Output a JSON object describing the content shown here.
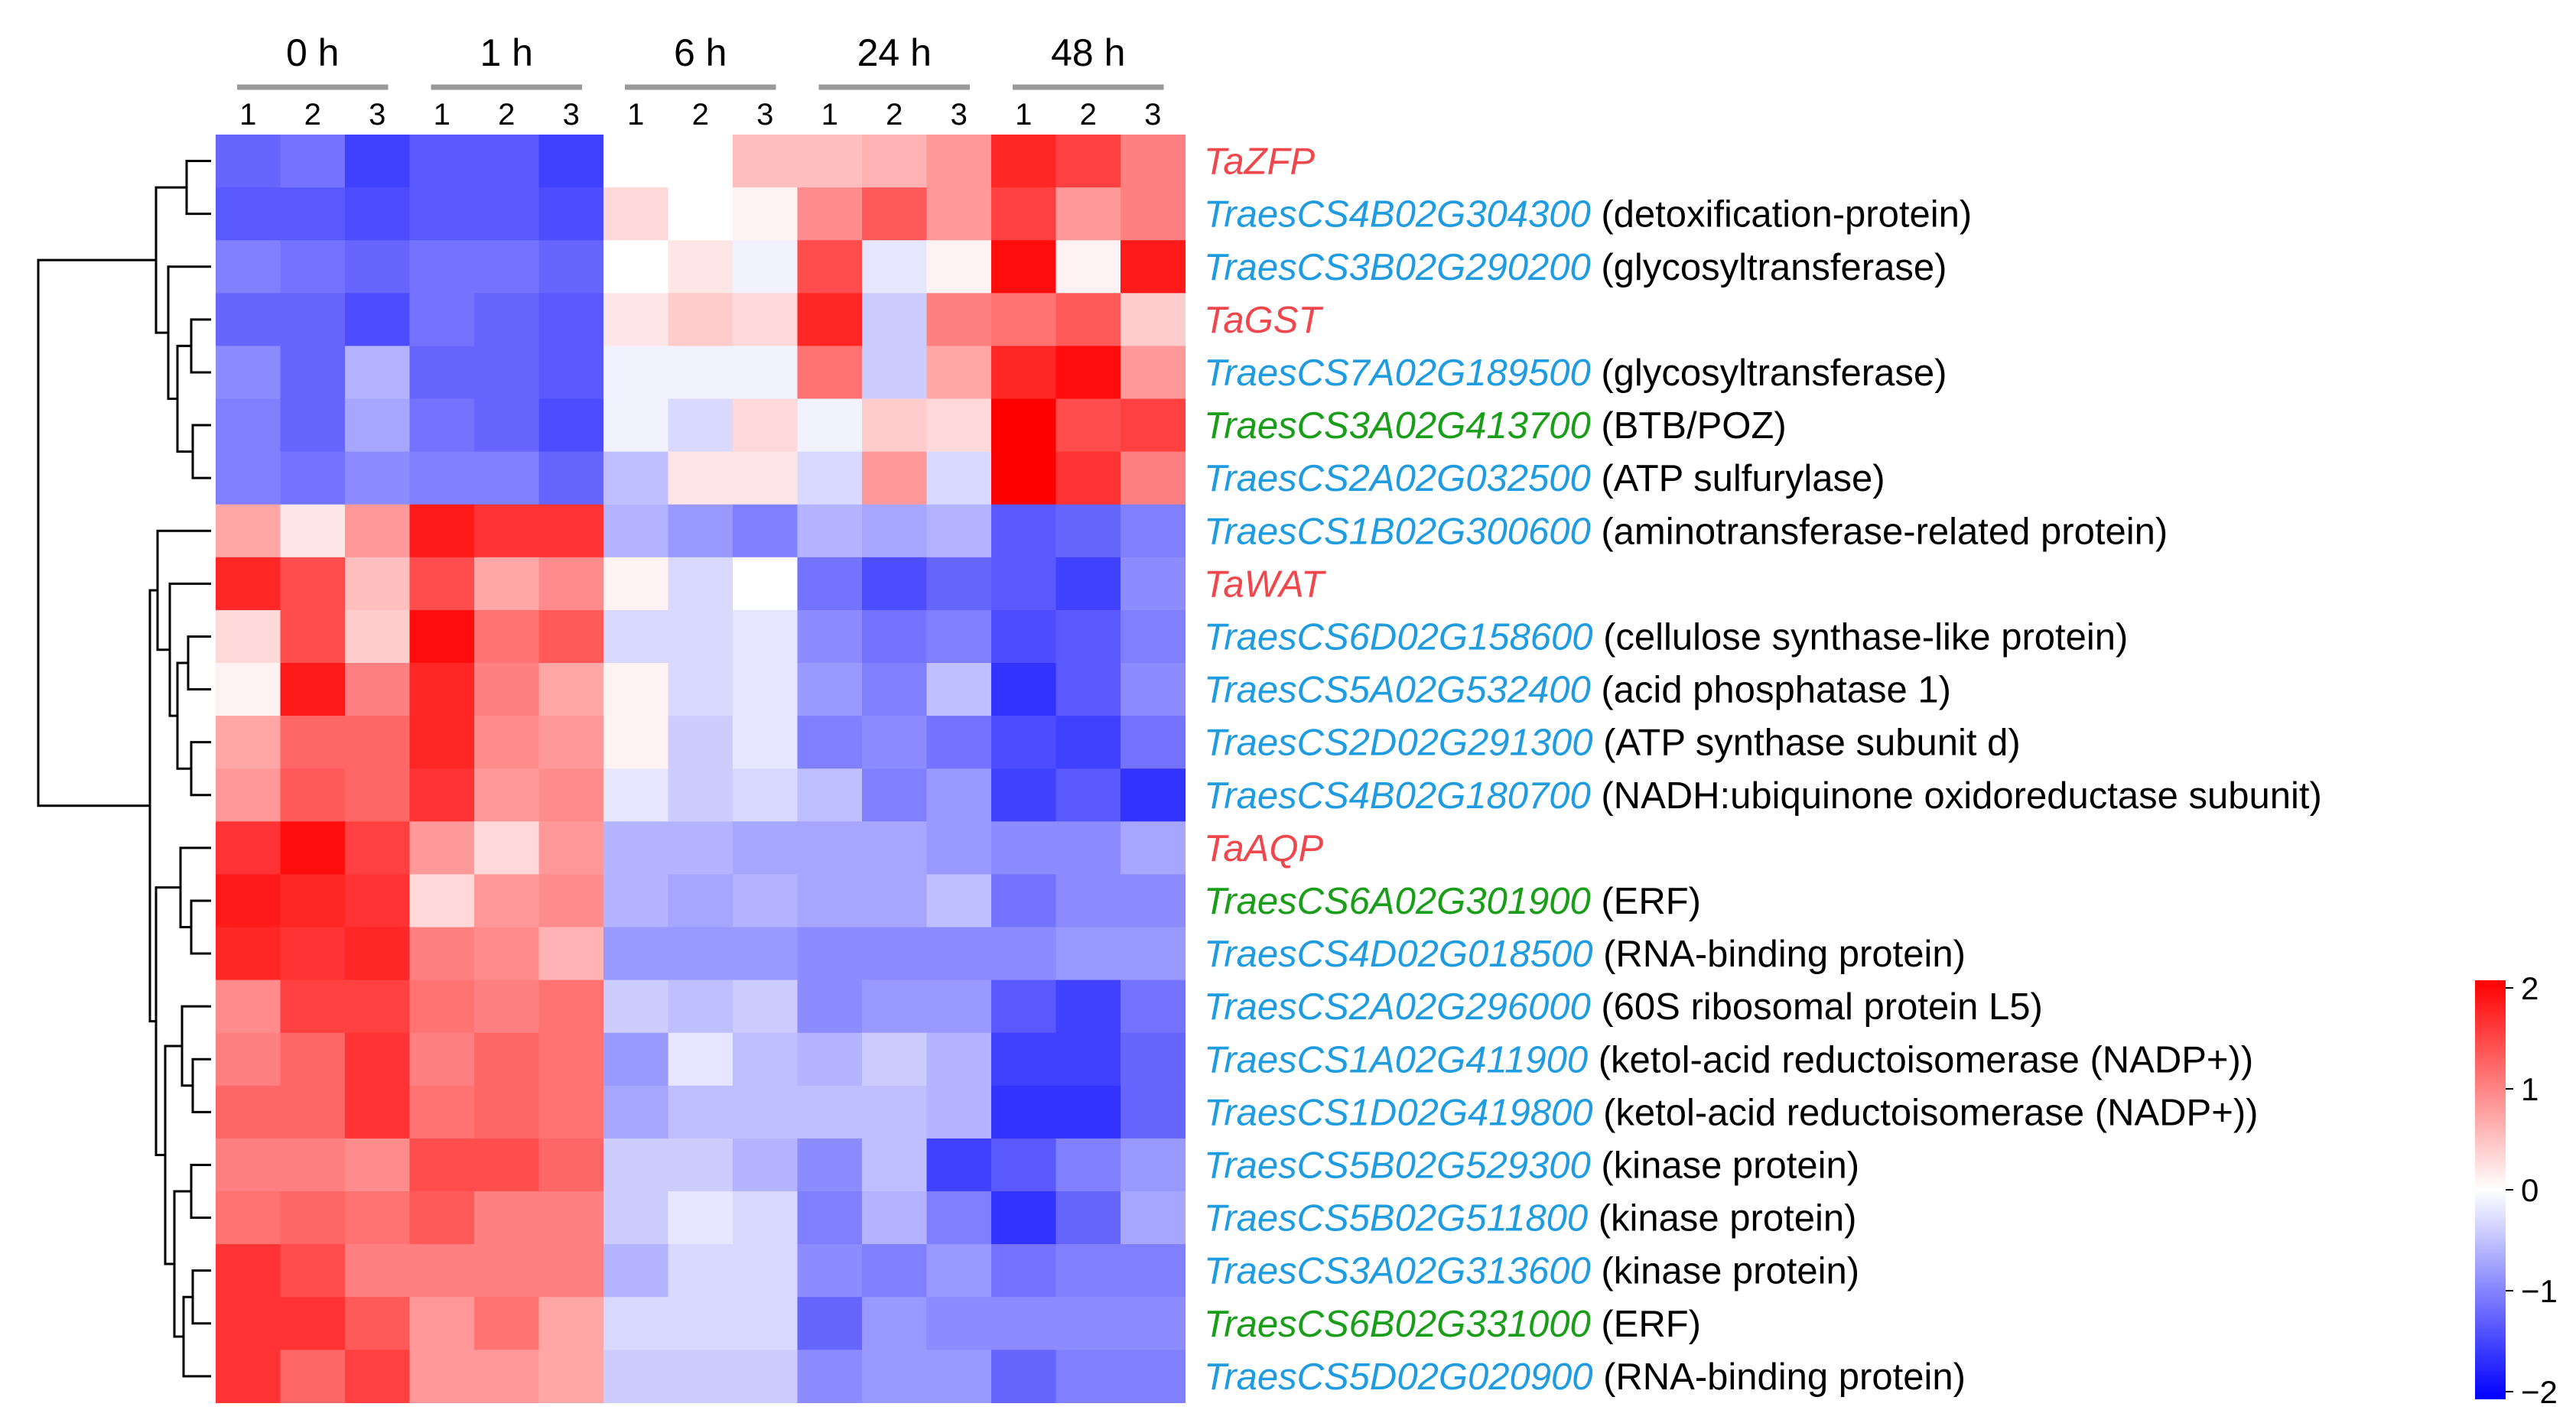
{
  "chart_data": {
    "type": "heatmap",
    "timepoints": [
      "0 h",
      "1 h",
      "6 h",
      "24 h",
      "48 h"
    ],
    "replicates": [
      "1",
      "2",
      "3"
    ],
    "colorbar": {
      "ticks": [
        "2",
        "1",
        "0",
        "−1",
        "−2"
      ],
      "min": -2,
      "max": 2,
      "colors": {
        "low": "#0000ff",
        "mid": "#ffffff",
        "high": "#ff0000"
      }
    },
    "category_colors": {
      "red": "#f0474d",
      "blue": "#1f9be0",
      "green": "#1a9e1a"
    },
    "rows": [
      {
        "gene": "TaZFP",
        "desc": "",
        "cat": "red",
        "values": [
          -1.2,
          -1.1,
          -1.5,
          -1.3,
          -1.3,
          -1.5,
          0.0,
          0.0,
          0.5,
          0.5,
          0.6,
          0.8,
          1.7,
          1.5,
          1.0
        ]
      },
      {
        "gene": "TraesCS4B02G304300",
        "desc": "(detoxification-protein)",
        "cat": "blue",
        "values": [
          -1.3,
          -1.3,
          -1.4,
          -1.3,
          -1.3,
          -1.4,
          0.3,
          0.0,
          0.1,
          0.9,
          1.3,
          0.8,
          1.5,
          0.8,
          1.0
        ]
      },
      {
        "gene": "TraesCS3B02G290200",
        "desc": "(glycosyltransferase)",
        "cat": "blue",
        "values": [
          -1.0,
          -1.1,
          -1.2,
          -1.1,
          -1.1,
          -1.2,
          0.0,
          0.2,
          -0.1,
          1.4,
          -0.2,
          0.1,
          1.9,
          0.1,
          1.8
        ]
      },
      {
        "gene": "TaGST",
        "desc": "",
        "cat": "red",
        "values": [
          -1.2,
          -1.2,
          -1.4,
          -1.1,
          -1.2,
          -1.3,
          0.2,
          0.4,
          0.3,
          1.7,
          -0.4,
          1.0,
          1.1,
          1.3,
          0.4
        ]
      },
      {
        "gene": "TraesCS7A02G189500",
        "desc": "(glycosyltransferase)",
        "cat": "blue",
        "values": [
          -0.9,
          -1.2,
          -0.6,
          -1.2,
          -1.2,
          -1.3,
          -0.1,
          -0.1,
          -0.1,
          1.1,
          -0.4,
          0.7,
          1.7,
          1.9,
          0.8
        ]
      },
      {
        "gene": "TraesCS3A02G413700",
        "desc": "(BTB/POZ)",
        "cat": "green",
        "values": [
          -1.0,
          -1.2,
          -0.7,
          -1.1,
          -1.2,
          -1.4,
          -0.1,
          -0.3,
          0.3,
          -0.1,
          0.4,
          0.3,
          2.0,
          1.4,
          1.5
        ]
      },
      {
        "gene": "TraesCS2A02G032500",
        "desc": "(ATP sulfurylase)",
        "cat": "blue",
        "values": [
          -1.0,
          -1.1,
          -0.9,
          -1.0,
          -1.0,
          -1.2,
          -0.5,
          0.2,
          0.2,
          -0.3,
          0.8,
          -0.3,
          2.0,
          1.6,
          1.0
        ]
      },
      {
        "gene": "TraesCS1B02G300600",
        "desc": "(aminotransferase-related protein)",
        "cat": "blue",
        "values": [
          0.7,
          0.2,
          0.8,
          1.8,
          1.6,
          1.6,
          -0.6,
          -0.8,
          -1.0,
          -0.6,
          -0.7,
          -0.6,
          -1.3,
          -1.2,
          -1.0
        ]
      },
      {
        "gene": "TaWAT",
        "desc": "",
        "cat": "red",
        "values": [
          1.7,
          1.4,
          0.5,
          1.4,
          0.7,
          0.9,
          0.1,
          -0.3,
          0.0,
          -1.1,
          -1.4,
          -1.2,
          -1.3,
          -1.5,
          -0.9
        ]
      },
      {
        "gene": "TraesCS6D02G158600",
        "desc": "(cellulose synthase-like protein)",
        "cat": "blue",
        "values": [
          0.3,
          1.4,
          0.4,
          1.9,
          1.1,
          1.3,
          -0.3,
          -0.3,
          -0.2,
          -0.9,
          -1.1,
          -1.0,
          -1.4,
          -1.3,
          -1.0
        ]
      },
      {
        "gene": "TraesCS5A02G532400",
        "desc": "(acid phosphatase 1)",
        "cat": "blue",
        "values": [
          0.1,
          1.8,
          1.0,
          1.7,
          1.0,
          0.7,
          0.1,
          -0.3,
          -0.2,
          -0.8,
          -1.0,
          -0.5,
          -1.6,
          -1.3,
          -0.9
        ]
      },
      {
        "gene": "TraesCS2D02G291300",
        "desc": "(ATP synthase subunit d)",
        "cat": "blue",
        "values": [
          0.7,
          1.2,
          1.2,
          1.7,
          0.9,
          0.8,
          0.1,
          -0.4,
          -0.2,
          -1.0,
          -0.9,
          -1.1,
          -1.4,
          -1.5,
          -1.1
        ]
      },
      {
        "gene": "TraesCS4B02G180700",
        "desc": "(NADH:ubiquinone oxidoreductase subunit)",
        "cat": "blue",
        "values": [
          0.8,
          1.3,
          1.2,
          1.6,
          0.8,
          0.9,
          -0.2,
          -0.4,
          -0.3,
          -0.5,
          -1.0,
          -0.8,
          -1.5,
          -1.3,
          -1.6
        ]
      },
      {
        "gene": "TaAQP",
        "desc": "",
        "cat": "red",
        "values": [
          1.6,
          1.9,
          1.5,
          0.8,
          0.3,
          0.8,
          -0.6,
          -0.6,
          -0.7,
          -0.7,
          -0.7,
          -0.8,
          -0.9,
          -0.9,
          -0.7
        ]
      },
      {
        "gene": "TraesCS6A02G301900",
        "desc": "(ERF)",
        "cat": "green",
        "values": [
          1.8,
          1.7,
          1.6,
          0.3,
          0.8,
          0.9,
          -0.6,
          -0.7,
          -0.6,
          -0.7,
          -0.7,
          -0.5,
          -1.1,
          -0.9,
          -0.9
        ]
      },
      {
        "gene": "TraesCS4D02G018500",
        "desc": "(RNA-binding protein)",
        "cat": "blue",
        "values": [
          1.7,
          1.6,
          1.7,
          1.0,
          0.9,
          0.6,
          -0.8,
          -0.8,
          -0.8,
          -0.9,
          -0.9,
          -0.9,
          -0.9,
          -0.8,
          -0.8
        ]
      },
      {
        "gene": "TraesCS2A02G296000",
        "desc": "(60S ribosomal protein L5)",
        "cat": "blue",
        "values": [
          0.9,
          1.5,
          1.5,
          1.1,
          1.0,
          1.1,
          -0.4,
          -0.5,
          -0.4,
          -0.9,
          -0.8,
          -0.8,
          -1.3,
          -1.5,
          -1.1
        ]
      },
      {
        "gene": "TraesCS1A02G411900",
        "desc": "(ketol-acid reductoisomerase (NADP+))",
        "cat": "blue",
        "values": [
          1.0,
          1.2,
          1.6,
          1.0,
          1.2,
          1.1,
          -0.8,
          -0.2,
          -0.5,
          -0.6,
          -0.4,
          -0.6,
          -1.5,
          -1.5,
          -1.2
        ]
      },
      {
        "gene": "TraesCS1D02G419800",
        "desc": "(ketol-acid reductoisomerase (NADP+))",
        "cat": "blue",
        "values": [
          1.2,
          1.2,
          1.6,
          1.1,
          1.2,
          1.1,
          -0.7,
          -0.5,
          -0.5,
          -0.5,
          -0.5,
          -0.6,
          -1.6,
          -1.6,
          -1.2
        ]
      },
      {
        "gene": "TraesCS5B02G529300",
        "desc": "(kinase protein)",
        "cat": "blue",
        "values": [
          1.0,
          1.0,
          0.9,
          1.4,
          1.4,
          1.2,
          -0.4,
          -0.4,
          -0.6,
          -0.9,
          -0.5,
          -1.5,
          -1.3,
          -1.0,
          -0.8
        ]
      },
      {
        "gene": "TraesCS5B02G511800",
        "desc": "(kinase protein)",
        "cat": "blue",
        "values": [
          1.1,
          1.2,
          1.1,
          1.3,
          1.0,
          1.0,
          -0.4,
          -0.2,
          -0.3,
          -1.0,
          -0.6,
          -1.0,
          -1.6,
          -1.2,
          -0.7
        ]
      },
      {
        "gene": "TraesCS3A02G313600",
        "desc": "(kinase protein)",
        "cat": "blue",
        "values": [
          1.6,
          1.4,
          1.0,
          1.0,
          1.0,
          1.0,
          -0.6,
          -0.3,
          -0.3,
          -0.9,
          -1.0,
          -0.8,
          -1.1,
          -1.0,
          -1.0
        ]
      },
      {
        "gene": "TraesCS6B02G331000",
        "desc": "(ERF)",
        "cat": "green",
        "values": [
          1.6,
          1.6,
          1.3,
          0.8,
          1.1,
          0.7,
          -0.3,
          -0.3,
          -0.3,
          -1.2,
          -0.8,
          -0.9,
          -0.9,
          -0.9,
          -0.9
        ]
      },
      {
        "gene": "TraesCS5D02G020900",
        "desc": "(RNA-binding protein)",
        "cat": "blue",
        "values": [
          1.6,
          1.2,
          1.5,
          0.8,
          0.8,
          0.7,
          -0.4,
          -0.4,
          -0.4,
          -0.9,
          -0.8,
          -0.8,
          -1.2,
          -1.0,
          -1.0
        ]
      }
    ]
  }
}
